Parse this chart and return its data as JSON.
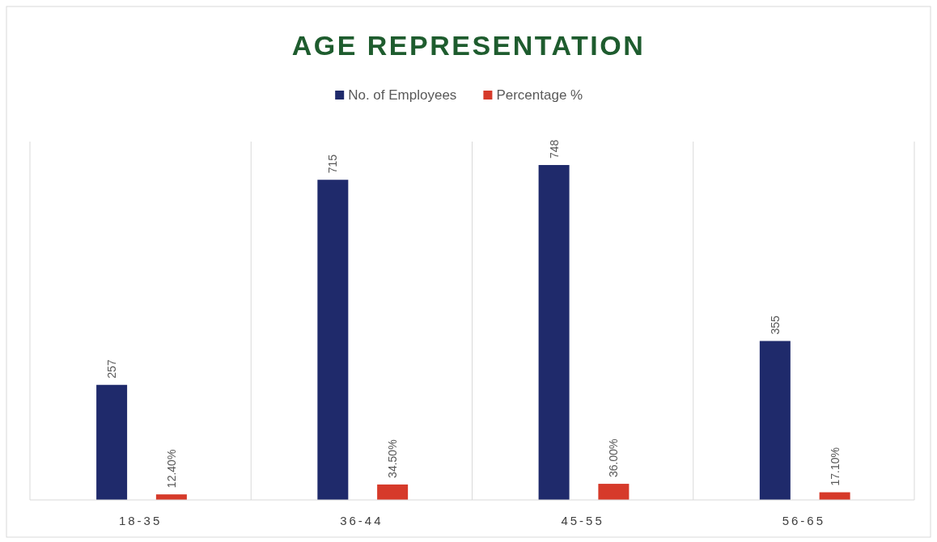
{
  "chart_data": {
    "type": "bar",
    "title": "AGE REPRESENTATION",
    "categories": [
      "18-35",
      "36-44",
      "45-55",
      "56-65"
    ],
    "series": [
      {
        "name": "No. of Employees",
        "color": "#1f2a6b",
        "values": [
          257,
          715,
          748,
          355
        ]
      },
      {
        "name": "Percentage %",
        "color": "#d63a2a",
        "values": [
          12.4,
          34.5,
          36.0,
          17.1
        ],
        "value_labels": [
          "12.40%",
          "34.50%",
          "36.00%",
          "17.10%"
        ]
      }
    ],
    "data_labels": true,
    "legend": "top",
    "grid": "x"
  }
}
